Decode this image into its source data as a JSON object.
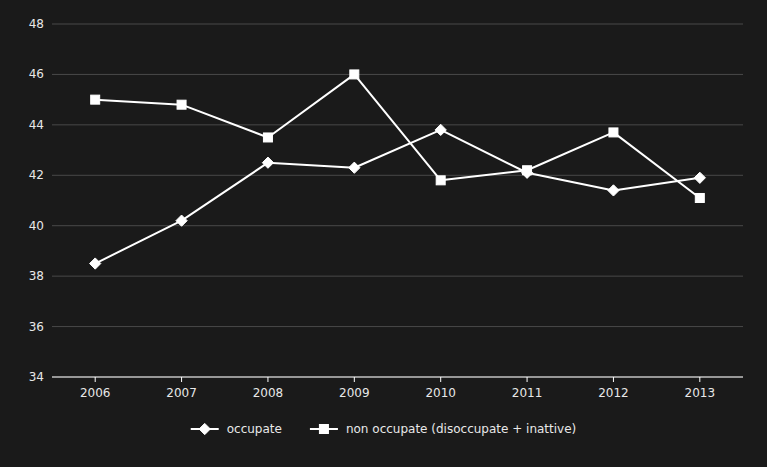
{
  "chart_data": {
    "type": "line",
    "x": [
      2006,
      2007,
      2008,
      2009,
      2010,
      2011,
      2012,
      2013
    ],
    "series": [
      {
        "name": "occupate",
        "color": "#ffffff",
        "marker": "diamond",
        "values": [
          38.5,
          40.2,
          42.5,
          42.3,
          43.8,
          42.1,
          41.4,
          41.9
        ]
      },
      {
        "name": "non occupate (disoccupate + inattive)",
        "color": "#ffffff",
        "marker": "square",
        "values": [
          45.0,
          44.8,
          43.5,
          46.0,
          41.8,
          42.2,
          43.7,
          41.1
        ]
      }
    ],
    "xlim": [
      2005.5,
      2013.5
    ],
    "xticks": [
      2006,
      2007,
      2008,
      2009,
      2010,
      2011,
      2012,
      2013
    ],
    "ylim": [
      34,
      48
    ],
    "yticks": [
      34,
      36,
      38,
      40,
      42,
      44,
      46,
      48
    ],
    "grid": true,
    "legend": "bottom"
  }
}
